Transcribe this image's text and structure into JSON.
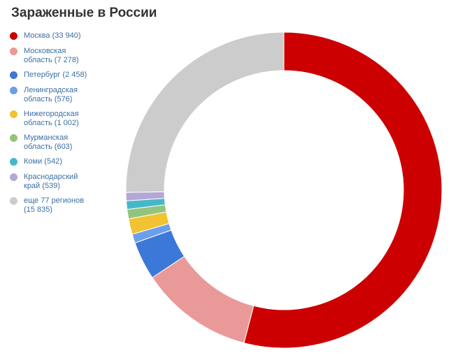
{
  "chart_data": {
    "type": "pie",
    "title": "Зараженные в России",
    "legend_position": "left",
    "donut": true,
    "slices": [
      {
        "label_lines": [
          "Москва (33 940)"
        ],
        "value": 33940,
        "color": "#cc0000"
      },
      {
        "label_lines": [
          "Московская",
          "область (7 278)"
        ],
        "value": 7278,
        "color": "#ea9999"
      },
      {
        "label_lines": [
          "Петербург (2 458)"
        ],
        "value": 2458,
        "color": "#3c78d8"
      },
      {
        "label_lines": [
          "Ленинградская",
          "область (576)"
        ],
        "value": 576,
        "color": "#6d9eeb"
      },
      {
        "label_lines": [
          "Нижегородская",
          "область (1 002)"
        ],
        "value": 1002,
        "color": "#f1c232"
      },
      {
        "label_lines": [
          "Мурманская",
          "область (603)"
        ],
        "value": 603,
        "color": "#93c47d"
      },
      {
        "label_lines": [
          "Коми (542)"
        ],
        "value": 542,
        "color": "#45b8c8"
      },
      {
        "label_lines": [
          "Краснодарский",
          "край (539)"
        ],
        "value": 539,
        "color": "#b4a7d6"
      },
      {
        "label_lines": [
          "еще 77 регионов",
          "(15 835)"
        ],
        "value": 15835,
        "color": "#cccccc"
      }
    ]
  }
}
